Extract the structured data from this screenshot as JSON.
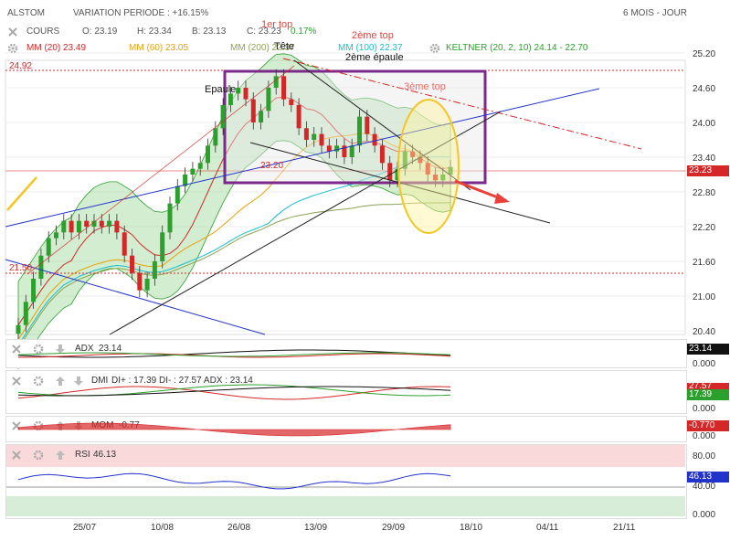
{
  "header": {
    "symbol": "ALSTOM",
    "variation": "VARIATION PERIODE : +16.15%",
    "period": "6 MOIS - JOUR",
    "cours_label": "COURS",
    "open": "O: 23.19",
    "high": "H: 23.34",
    "low": "B: 23.13",
    "close": "C: 23.23",
    "change": "0.17%",
    "mm20": "MM (20) 23.49",
    "mm60": "MM (60) 23.05",
    "mm200": "MM (200) 22.37",
    "mm100": "MM (100) 22.37",
    "keltner": "KELTNER (20, 2, 10) 24.14 - 22.70"
  },
  "colors": {
    "up": "#2ca02c",
    "down": "#d62728",
    "mm20": "#d62728",
    "mm60": "#e8a20a",
    "mm100": "#17becf",
    "mm200": "#8ca252",
    "keltner": "#2ca02c",
    "purple": "#7b2a8c",
    "blue": "#2233cc",
    "yellow": "#f3c623"
  },
  "annotations": {
    "top1": "1er top",
    "top2": "2ème top",
    "top3": "3ème top",
    "tete": "Tête",
    "epaule1": "Epaule",
    "epaule2": "2ème épaule",
    "level_box": "23.20",
    "level_top": "24.92",
    "level_low": "21.50"
  },
  "price_axis": [
    "25.20",
    "24.60",
    "24.00",
    "23.40",
    "22.80",
    "22.20",
    "21.60",
    "21.00",
    "20.40"
  ],
  "price_tag": "23.23",
  "date_axis": [
    "25/07",
    "10/08",
    "26/08",
    "13/09",
    "29/09",
    "18/10",
    "04/11",
    "21/11"
  ],
  "adx": {
    "label": "ADX",
    "value": "23.14",
    "tag": "23.14",
    "axis0": "0.000"
  },
  "dmi": {
    "label": "DMI",
    "text": "DI+ : 17.39 DI- : 27.57 ADX : 23.14",
    "tag_red": "27.57",
    "tag_green": "17.39",
    "axis0": "0.000"
  },
  "mom": {
    "label": "MOM",
    "value": "-0.77",
    "tag": "-0.770",
    "axis0": "0.000"
  },
  "rsi": {
    "label": "RSI",
    "value": "46.13",
    "tag": "46.13",
    "axis80": "80.00",
    "axis40": "40.00",
    "axis0": "0.000"
  },
  "chart_data": {
    "type": "line",
    "title": "",
    "ylim": [
      20.3,
      25.4
    ],
    "dates": [
      "25/07",
      "10/08",
      "26/08",
      "13/09",
      "29/09",
      "18/10",
      "04/11",
      "21/11"
    ],
    "close_series": [
      20.5,
      20.9,
      21.3,
      21.7,
      22.0,
      22.1,
      22.3,
      22.1,
      22.3,
      22.2,
      22.3,
      22.2,
      22.3,
      22.1,
      21.7,
      21.4,
      21.1,
      21.3,
      21.6,
      22.1,
      22.6,
      22.9,
      23.1,
      23.2,
      23.3,
      23.6,
      23.9,
      24.3,
      24.5,
      24.6,
      24.4,
      24.0,
      24.2,
      24.6,
      24.8,
      24.4,
      24.3,
      23.9,
      23.7,
      23.8,
      23.6,
      23.5,
      23.6,
      23.4,
      23.6,
      24.1,
      23.8,
      23.6,
      23.3,
      23.0,
      23.2,
      23.5,
      23.4,
      23.3,
      23.1,
      23.0,
      23.1,
      23.23
    ],
    "indicators": {
      "adx": 23.14,
      "di_plus": 17.39,
      "di_minus": 27.57,
      "mom": -0.77,
      "rsi": 46.13
    }
  }
}
